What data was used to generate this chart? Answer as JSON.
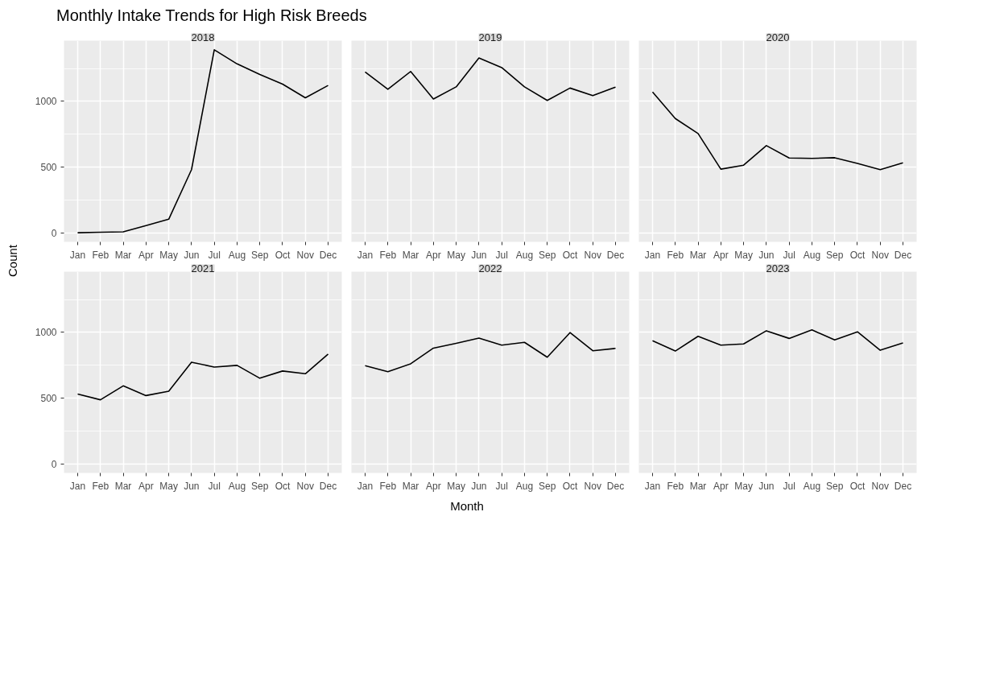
{
  "chart_data": [
    {
      "type": "line",
      "title": "2018",
      "annotations": [
        "Monthly Intake Trends for High Risk Breeds"
      ],
      "ylabel": "Count",
      "categories": [
        "Jan",
        "Feb",
        "Mar",
        "Apr",
        "May",
        "Jun",
        "Jul",
        "Aug",
        "Sep",
        "Oct",
        "Nov",
        "Dec"
      ],
      "values": [
        0,
        4,
        7,
        55,
        103,
        480,
        1392,
        1285,
        1204,
        1131,
        1027,
        1121
      ],
      "color": "#000000",
      "ylim": [
        -69.6,
        1461.6
      ],
      "yticks": [
        0,
        500,
        1000
      ],
      "grid": true
    },
    {
      "type": "line",
      "title": "2019",
      "categories": [
        "Jan",
        "Feb",
        "Mar",
        "Apr",
        "May",
        "Jun",
        "Jul",
        "Aug",
        "Sep",
        "Oct",
        "Nov",
        "Dec"
      ],
      "values": [
        1223,
        1092,
        1227,
        1018,
        1110,
        1330,
        1257,
        1110,
        1007,
        1101,
        1043,
        1108
      ],
      "color": "#000000",
      "ylim": [
        -69.6,
        1461.6
      ],
      "yticks": [
        0,
        500,
        1000
      ],
      "grid": true,
      "tick_labels": "x"
    },
    {
      "type": "line",
      "title": "2020",
      "categories": [
        "Jan",
        "Feb",
        "Mar",
        "Apr",
        "May",
        "Jun",
        "Jul",
        "Aug",
        "Sep",
        "Oct",
        "Nov",
        "Dec"
      ],
      "values": [
        1071,
        869,
        755,
        484,
        514,
        663,
        569,
        566,
        571,
        528,
        480,
        532
      ],
      "color": "#000000",
      "ylim": [
        -69.6,
        1461.6
      ],
      "yticks": [
        0,
        500,
        1000
      ],
      "grid": true,
      "tick_labels": "x"
    },
    {
      "type": "line",
      "title": "2021",
      "categories": [
        "Jan",
        "Feb",
        "Mar",
        "Apr",
        "May",
        "Jun",
        "Jul",
        "Aug",
        "Sep",
        "Oct",
        "Nov",
        "Dec"
      ],
      "values": [
        531,
        487,
        593,
        519,
        552,
        773,
        736,
        749,
        651,
        706,
        685,
        834
      ],
      "color": "#000000",
      "ylim": [
        -69.6,
        1461.6
      ],
      "yticks": [
        0,
        500,
        1000
      ],
      "grid": true
    },
    {
      "type": "line",
      "title": "2022",
      "xlabel": "Month",
      "categories": [
        "Jan",
        "Feb",
        "Mar",
        "Apr",
        "May",
        "Jun",
        "Jul",
        "Aug",
        "Sep",
        "Oct",
        "Nov",
        "Dec"
      ],
      "values": [
        747,
        701,
        761,
        880,
        917,
        956,
        903,
        924,
        811,
        998,
        860,
        878
      ],
      "color": "#000000",
      "ylim": [
        -69.6,
        1461.6
      ],
      "yticks": [
        0,
        500,
        1000
      ],
      "grid": true,
      "tick_labels": "x"
    },
    {
      "type": "line",
      "title": "2023",
      "categories": [
        "Jan",
        "Feb",
        "Mar",
        "Apr",
        "May",
        "Jun",
        "Jul",
        "Aug",
        "Sep",
        "Oct",
        "Nov",
        "Dec"
      ],
      "values": [
        936,
        858,
        970,
        903,
        912,
        1012,
        954,
        1019,
        942,
        1004,
        864,
        920
      ],
      "color": "#000000",
      "ylim": [
        -69.6,
        1461.6
      ],
      "yticks": [
        0,
        500,
        1000
      ],
      "grid": true,
      "tick_labels": "x"
    }
  ]
}
